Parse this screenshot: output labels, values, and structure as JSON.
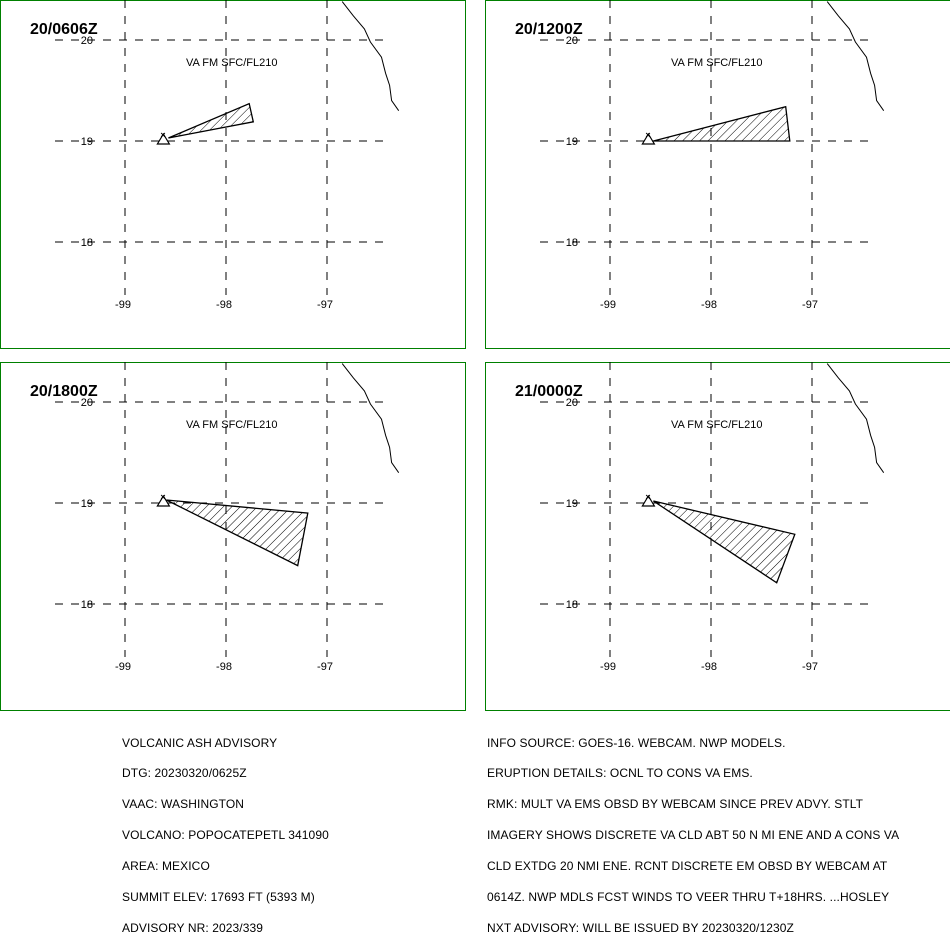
{
  "panels": [
    {
      "time_label": "20/0606Z",
      "layer_label": "VA FM SFC/FL210",
      "polygon": [
        [
          -98.57,
          19.03
        ],
        [
          -97.77,
          19.37
        ],
        [
          -97.73,
          19.19
        ]
      ]
    },
    {
      "time_label": "20/1200Z",
      "layer_label": "VA FM SFC/FL210",
      "polygon": [
        [
          -98.57,
          19.0
        ],
        [
          -97.26,
          19.34
        ],
        [
          -97.22,
          19.0
        ]
      ]
    },
    {
      "time_label": "20/1800Z",
      "layer_label": "VA FM SFC/FL210",
      "polygon": [
        [
          -98.59,
          19.03
        ],
        [
          -97.19,
          18.9
        ],
        [
          -97.29,
          18.38
        ]
      ]
    },
    {
      "time_label": "21/0000Z",
      "layer_label": "VA FM SFC/FL210",
      "polygon": [
        [
          -98.57,
          19.02
        ],
        [
          -97.17,
          18.69
        ],
        [
          -97.35,
          18.21
        ]
      ]
    }
  ],
  "map": {
    "longitude_labels": [
      "-99",
      "-98",
      "-97"
    ],
    "longitudes": [
      -99,
      -98,
      -97
    ],
    "latitude_labels": [
      "20",
      "19",
      "18"
    ],
    "latitudes": [
      20,
      19,
      18
    ],
    "volcano": {
      "name": "POPOCATEPETL",
      "lon": -98.62,
      "lat": 19.02
    },
    "coastline": [
      [
        -96.85,
        20.38
      ],
      [
        -96.74,
        20.24
      ],
      [
        -96.63,
        20.11
      ],
      [
        -96.57,
        19.98
      ],
      [
        -96.46,
        19.83
      ],
      [
        -96.42,
        19.67
      ],
      [
        -96.38,
        19.55
      ],
      [
        -96.36,
        19.4
      ],
      [
        -96.29,
        19.3
      ]
    ],
    "colors": {
      "frame": "#008000",
      "ink": "#000000",
      "background": "#ffffff"
    }
  },
  "advisory_left": [
    "VOLCANIC ASH ADVISORY",
    "DTG: 20230320/0625Z",
    "VAAC: WASHINGTON",
    "VOLCANO: POPOCATEPETL 341090",
    "AREA: MEXICO",
    "SUMMIT ELEV: 17693 FT (5393 M)",
    "ADVISORY NR: 2023/339"
  ],
  "advisory_right": [
    "INFO SOURCE: GOES-16. WEBCAM. NWP MODELS.",
    "ERUPTION DETAILS: OCNL TO CONS VA EMS.",
    "RMK: MULT VA EMS OBSD BY WEBCAM SINCE PREV ADVY. STLT",
    "IMAGERY SHOWS DISCRETE VA CLD ABT 50 N MI ENE AND A CONS VA",
    "CLD EXTDG 20 NMI ENE. RCNT DISCRETE EM OBSD BY WEBCAM AT",
    "0614Z. NWP MDLS FCST WINDS TO VEER THRU T+18HRS. ...HOSLEY",
    "NXT ADVISORY: WILL BE ISSUED BY 20230320/1230Z"
  ]
}
